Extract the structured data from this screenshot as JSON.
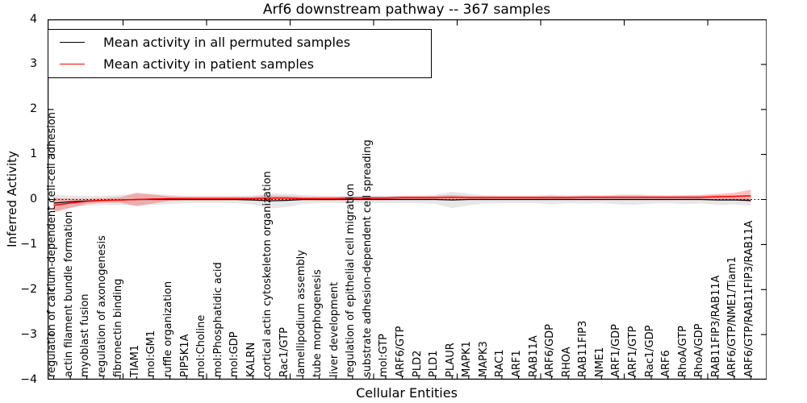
{
  "figure": {
    "title": "Arf6 downstream pathway -- 367 samples",
    "xlabel": "Cellular Entities",
    "ylabel": "Inferred Activity",
    "y_tick_labels": [
      "4",
      "3",
      "2",
      "1",
      "0",
      "−1",
      "−2",
      "−3",
      "−4"
    ]
  },
  "legend": {
    "items": [
      {
        "label": "Mean activity in all permuted samples",
        "color": "#000000"
      },
      {
        "label": "Mean activity in patient samples",
        "color": "#ff0000"
      }
    ]
  },
  "colors": {
    "permuted_line": "#000000",
    "patient_line": "#ff0000",
    "permuted_band": "#aaaaaa",
    "patient_band": "#ff0000",
    "zero_line": "#000000",
    "axis": "#000000",
    "background": "#ffffff"
  },
  "chart_data": {
    "type": "line",
    "title": "Arf6 downstream pathway -- 367 samples",
    "xlabel": "Cellular Entities",
    "ylabel": "Inferred Activity",
    "ylim": [
      -4,
      4
    ],
    "y_ticks": [
      4,
      3,
      2,
      1,
      0,
      -1,
      -2,
      -3,
      -4
    ],
    "grid": false,
    "legend_position": "upper left",
    "zero_line_style": "dotted",
    "categories": [
      "regulation of calcium-dependent cell-cell adhesion",
      "actin filament bundle formation",
      "myoblast fusion",
      "regulation of axonogenesis",
      "fibronectin binding",
      "TIAM1",
      "mol:GM1",
      "ruffle organization",
      "PIP5K1A",
      "mol:Choline",
      "mol:Phosphatidic acid",
      "mol:GDP",
      "KALRN",
      "cortical actin cytoskeleton organization",
      "Rac1/GTP",
      "lamellipodium assembly",
      "tube morphogenesis",
      "liver development",
      "regulation of epithelial cell migration",
      "substrate adhesion-dependent cell spreading",
      "mol:GTP",
      "ARF6/GTP",
      "PLD2",
      "PLD1",
      "PLAUR",
      "MAPK1",
      "MAPK3",
      "RAC1",
      "ARF1",
      "RAB11A",
      "ARF6/GDP",
      "RHOA",
      "RAB11FIP3",
      "NME1",
      "ARF1/GDP",
      "ARF1/GTP",
      "Rac1/GDP",
      "ARF6",
      "RhoA/GTP",
      "RhoA/GDP",
      "RAB11FIP3/RAB11A",
      "ARF6/GTP/NME1/Tiam1",
      "ARF6/GTP/RAB11FIP3/RAB11A"
    ],
    "series": [
      {
        "name": "Mean activity in all permuted samples",
        "color": "#000000",
        "values": [
          -0.08,
          -0.05,
          -0.03,
          -0.02,
          -0.01,
          0,
          0,
          0,
          0,
          0,
          0,
          0,
          -0.01,
          -0.03,
          -0.02,
          0,
          0,
          0,
          0,
          0,
          0,
          0,
          0,
          0,
          -0.01,
          0,
          0,
          0,
          0,
          0,
          0,
          0,
          0,
          0,
          0,
          0,
          0,
          0,
          0,
          0,
          -0.01,
          -0.01,
          -0.02
        ]
      },
      {
        "name": "Mean activity in patient samples",
        "color": "#ff0000",
        "values": [
          -0.13,
          -0.08,
          -0.04,
          -0.02,
          -0.01,
          0,
          0.01,
          0.02,
          0.02,
          0.02,
          0.02,
          0.02,
          0.02,
          0.03,
          0.03,
          0.02,
          0.02,
          0.02,
          0.03,
          0.03,
          0.03,
          0.04,
          0.04,
          0.04,
          0.05,
          0.04,
          0.04,
          0.04,
          0.04,
          0.04,
          0.04,
          0.04,
          0.05,
          0.05,
          0.05,
          0.05,
          0.05,
          0.05,
          0.05,
          0.05,
          0.06,
          0.07,
          0.08
        ]
      },
      {
        "name": "permuted samples band half-width",
        "color": "#aaaaaa",
        "values": [
          0.18,
          0.14,
          0.11,
          0.1,
          0.11,
          0.13,
          0.12,
          0.1,
          0.08,
          0.08,
          0.08,
          0.08,
          0.1,
          0.17,
          0.15,
          0.1,
          0.08,
          0.08,
          0.08,
          0.08,
          0.08,
          0.08,
          0.08,
          0.1,
          0.18,
          0.13,
          0.09,
          0.08,
          0.08,
          0.08,
          0.11,
          0.08,
          0.09,
          0.08,
          0.11,
          0.12,
          0.09,
          0.08,
          0.1,
          0.09,
          0.11,
          0.1,
          0.12
        ]
      },
      {
        "name": "patient samples band half-width",
        "color": "#ff0000",
        "values": [
          0.16,
          0.1,
          0.06,
          0.05,
          0.06,
          0.15,
          0.1,
          0.05,
          0.04,
          0.04,
          0.04,
          0.04,
          0.04,
          0.06,
          0.05,
          0.04,
          0.04,
          0.04,
          0.04,
          0.04,
          0.04,
          0.04,
          0.04,
          0.04,
          0.05,
          0.04,
          0.04,
          0.04,
          0.04,
          0.04,
          0.04,
          0.04,
          0.04,
          0.04,
          0.04,
          0.04,
          0.04,
          0.04,
          0.04,
          0.05,
          0.06,
          0.08,
          0.14
        ]
      }
    ]
  }
}
